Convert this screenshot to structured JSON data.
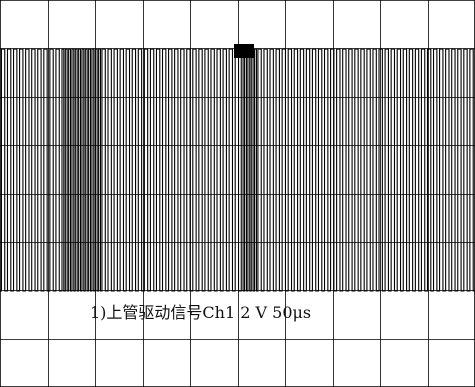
{
  "chart_data": {
    "type": "line",
    "title": "1)上管驱动信号Ch1 2 V 50μs",
    "channel": "Ch1",
    "volts_per_div": "2 V",
    "time_per_div": "50μs",
    "grid": true,
    "grid_divisions": {
      "x": 10,
      "y": 8
    },
    "signal": {
      "name": "上管驱动信号",
      "type": "pwm_square_wave",
      "low_div": 0,
      "high_div": 5,
      "pulse_count": 80,
      "dense_regions": [
        {
          "from_div": 1.2,
          "to_div": 2.1
        },
        {
          "from_div": 5.0,
          "to_div": 5.4
        }
      ]
    },
    "trigger_marker": "▼"
  }
}
